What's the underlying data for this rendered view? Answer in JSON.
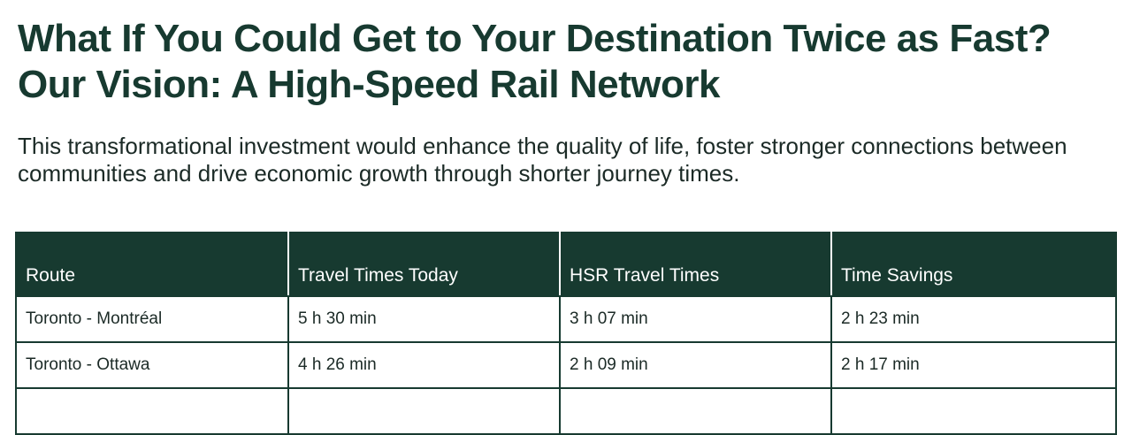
{
  "title": "What If You Could Get to Your Destination Twice as Fast? Our Vision: A High-Speed Rail Network",
  "subtitle": "This transformational investment would enhance the quality of life, foster stronger connections between communities and drive economic growth through shorter journey times.",
  "table": {
    "headers": [
      "Route",
      "Travel Times Today",
      "HSR Travel Times",
      "Time Savings"
    ],
    "rows": [
      [
        "Toronto - Montréal",
        "5 h 30 min",
        "3 h 07 min",
        "2 h 23 min"
      ],
      [
        "Toronto - Ottawa",
        "4 h 26 min",
        "2 h 09 min",
        "2 h 17 min"
      ],
      [
        "",
        "",
        "",
        ""
      ]
    ]
  },
  "colors": {
    "brand_green": "#173a30"
  }
}
